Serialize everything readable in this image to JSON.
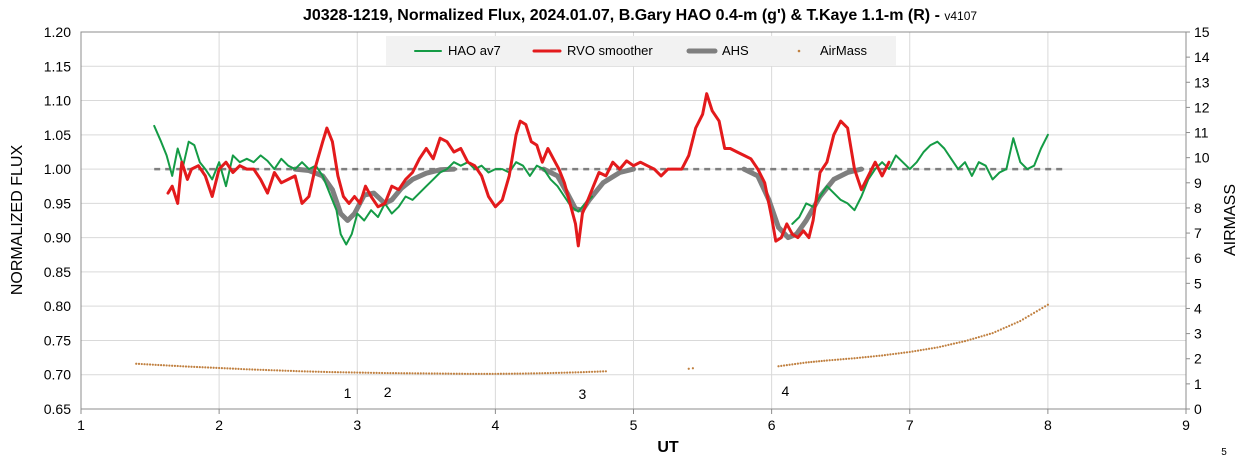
{
  "chart_data": {
    "type": "line",
    "title": "J0328-1219, Normalized Flux, 2024.01.07, B.Gary HAO 0.4-m (g') & T.Kaye 1.1-m (R) - ",
    "title_suffix": "v4107",
    "xlabel": "UT",
    "ylabel": "NORMALIZED FLUX",
    "y2label": "AIRMASS",
    "xlim": [
      1,
      9
    ],
    "ylim": [
      0.65,
      1.2
    ],
    "y2lim": [
      0,
      15
    ],
    "x_ticks": [
      "1",
      "2",
      "3",
      "4",
      "5",
      "6",
      "7",
      "8",
      "9"
    ],
    "y_ticks": [
      "0.65",
      "0.70",
      "0.75",
      "0.80",
      "0.85",
      "0.90",
      "0.95",
      "1.00",
      "1.05",
      "1.10",
      "1.15",
      "1.20"
    ],
    "y2_ticks": [
      "0",
      "1",
      "2",
      "3",
      "4",
      "5",
      "6",
      "7",
      "8",
      "9",
      "10",
      "11",
      "12",
      "13",
      "14",
      "15"
    ],
    "grid": true,
    "legend_position": "top-center",
    "corner_label": "5",
    "series": [
      {
        "name": "HAO av7",
        "color": "#149b45",
        "points": [
          [
            1.53,
            1.063
          ],
          [
            1.58,
            1.04
          ],
          [
            1.62,
            1.02
          ],
          [
            1.66,
            0.99
          ],
          [
            1.7,
            1.03
          ],
          [
            1.74,
            1.005
          ],
          [
            1.78,
            1.04
          ],
          [
            1.82,
            1.035
          ],
          [
            1.86,
            1.01
          ],
          [
            1.9,
            1.0
          ],
          [
            1.95,
            0.985
          ],
          [
            2.0,
            1.01
          ],
          [
            2.05,
            0.975
          ],
          [
            2.1,
            1.02
          ],
          [
            2.15,
            1.01
          ],
          [
            2.2,
            1.015
          ],
          [
            2.25,
            1.01
          ],
          [
            2.3,
            1.02
          ],
          [
            2.35,
            1.012
          ],
          [
            2.4,
            1.0
          ],
          [
            2.45,
            1.015
          ],
          [
            2.5,
            1.005
          ],
          [
            2.55,
            1.0
          ],
          [
            2.6,
            1.01
          ],
          [
            2.65,
            1.0
          ],
          [
            2.7,
            1.005
          ],
          [
            2.75,
            0.99
          ],
          [
            2.8,
            0.965
          ],
          [
            2.85,
            0.94
          ],
          [
            2.88,
            0.905
          ],
          [
            2.92,
            0.89
          ],
          [
            2.96,
            0.905
          ],
          [
            3.0,
            0.935
          ],
          [
            3.05,
            0.925
          ],
          [
            3.1,
            0.94
          ],
          [
            3.15,
            0.93
          ],
          [
            3.2,
            0.95
          ],
          [
            3.25,
            0.935
          ],
          [
            3.3,
            0.945
          ],
          [
            3.35,
            0.96
          ],
          [
            3.4,
            0.955
          ],
          [
            3.45,
            0.965
          ],
          [
            3.5,
            0.975
          ],
          [
            3.55,
            0.985
          ],
          [
            3.6,
            0.995
          ],
          [
            3.65,
            1.0
          ],
          [
            3.7,
            1.01
          ],
          [
            3.75,
            1.005
          ],
          [
            3.8,
            1.01
          ],
          [
            3.85,
            1.0
          ],
          [
            3.9,
            1.005
          ],
          [
            3.95,
            0.995
          ],
          [
            4.0,
            1.0
          ],
          [
            4.05,
            1.0
          ],
          [
            4.1,
            0.995
          ],
          [
            4.15,
            1.01
          ],
          [
            4.2,
            1.005
          ],
          [
            4.25,
            0.99
          ],
          [
            4.3,
            1.005
          ],
          [
            4.35,
            1.0
          ],
          [
            4.4,
            0.985
          ],
          [
            4.45,
            0.975
          ],
          [
            4.5,
            0.96
          ],
          [
            4.55,
            0.945
          ],
          [
            4.6,
            0.938
          ],
          [
            4.65,
            0.95
          ],
          [
            4.7,
            0.96
          ],
          [
            6.15,
            0.92
          ],
          [
            6.2,
            0.93
          ],
          [
            6.25,
            0.95
          ],
          [
            6.3,
            0.945
          ],
          [
            6.35,
            0.96
          ],
          [
            6.4,
            0.975
          ],
          [
            6.45,
            0.965
          ],
          [
            6.5,
            0.955
          ],
          [
            6.55,
            0.95
          ],
          [
            6.6,
            0.94
          ],
          [
            6.65,
            0.96
          ],
          [
            6.7,
            0.985
          ],
          [
            6.75,
            1.0
          ],
          [
            6.8,
            1.01
          ],
          [
            6.85,
            1.0
          ],
          [
            6.9,
            1.02
          ],
          [
            6.95,
            1.01
          ],
          [
            7.0,
            1.0
          ],
          [
            7.05,
            1.01
          ],
          [
            7.1,
            1.025
          ],
          [
            7.15,
            1.035
          ],
          [
            7.2,
            1.04
          ],
          [
            7.25,
            1.03
          ],
          [
            7.3,
            1.015
          ],
          [
            7.35,
            1.0
          ],
          [
            7.4,
            1.01
          ],
          [
            7.45,
            0.99
          ],
          [
            7.5,
            1.01
          ],
          [
            7.55,
            1.005
          ],
          [
            7.6,
            0.985
          ],
          [
            7.65,
            0.995
          ],
          [
            7.7,
            1.0
          ],
          [
            7.75,
            1.045
          ],
          [
            7.8,
            1.01
          ],
          [
            7.85,
            1.0
          ],
          [
            7.9,
            1.005
          ],
          [
            7.95,
            1.03
          ],
          [
            8.0,
            1.05
          ]
        ]
      },
      {
        "name": "RVO smoother",
        "color": "#e31a1c",
        "points": [
          [
            1.63,
            0.965
          ],
          [
            1.66,
            0.975
          ],
          [
            1.7,
            0.95
          ],
          [
            1.73,
            1.01
          ],
          [
            1.77,
            0.985
          ],
          [
            1.8,
            1.0
          ],
          [
            1.85,
            1.005
          ],
          [
            1.9,
            0.99
          ],
          [
            1.95,
            0.96
          ],
          [
            2.0,
            1.0
          ],
          [
            2.05,
            1.01
          ],
          [
            2.1,
            0.995
          ],
          [
            2.15,
            1.005
          ],
          [
            2.2,
            1.0
          ],
          [
            2.25,
            1.0
          ],
          [
            2.3,
            0.985
          ],
          [
            2.35,
            0.965
          ],
          [
            2.4,
            0.995
          ],
          [
            2.45,
            0.98
          ],
          [
            2.5,
            0.985
          ],
          [
            2.55,
            0.99
          ],
          [
            2.6,
            0.95
          ],
          [
            2.65,
            0.96
          ],
          [
            2.7,
            1.005
          ],
          [
            2.75,
            1.04
          ],
          [
            2.78,
            1.06
          ],
          [
            2.82,
            1.04
          ],
          [
            2.86,
            0.99
          ],
          [
            2.9,
            0.96
          ],
          [
            2.94,
            0.95
          ],
          [
            2.98,
            0.96
          ],
          [
            3.02,
            0.95
          ],
          [
            3.06,
            0.975
          ],
          [
            3.1,
            0.96
          ],
          [
            3.15,
            0.945
          ],
          [
            3.2,
            0.95
          ],
          [
            3.25,
            0.975
          ],
          [
            3.3,
            0.97
          ],
          [
            3.35,
            0.985
          ],
          [
            3.4,
            0.995
          ],
          [
            3.45,
            1.015
          ],
          [
            3.5,
            1.03
          ],
          [
            3.55,
            1.015
          ],
          [
            3.6,
            1.045
          ],
          [
            3.65,
            1.04
          ],
          [
            3.7,
            1.025
          ],
          [
            3.75,
            1.03
          ],
          [
            3.8,
            1.01
          ],
          [
            3.85,
            1.005
          ],
          [
            3.9,
            0.99
          ],
          [
            3.95,
            0.96
          ],
          [
            4.0,
            0.945
          ],
          [
            4.05,
            0.955
          ],
          [
            4.1,
            0.99
          ],
          [
            4.15,
            1.05
          ],
          [
            4.18,
            1.07
          ],
          [
            4.22,
            1.065
          ],
          [
            4.26,
            1.04
          ],
          [
            4.3,
            1.035
          ],
          [
            4.34,
            1.01
          ],
          [
            4.38,
            1.03
          ],
          [
            4.42,
            1.015
          ],
          [
            4.46,
            1.0
          ],
          [
            4.5,
            0.98
          ],
          [
            4.54,
            0.95
          ],
          [
            4.58,
            0.92
          ],
          [
            4.6,
            0.888
          ],
          [
            4.63,
            0.935
          ],
          [
            4.67,
            0.955
          ],
          [
            4.71,
            0.975
          ],
          [
            4.75,
            0.995
          ],
          [
            4.8,
            0.99
          ],
          [
            4.85,
            1.01
          ],
          [
            4.9,
            1.0
          ],
          [
            4.95,
            1.012
          ],
          [
            5.0,
            1.005
          ],
          [
            5.05,
            1.01
          ],
          [
            5.1,
            1.005
          ],
          [
            5.15,
            1.0
          ],
          [
            5.2,
            0.99
          ],
          [
            5.25,
            1.0
          ],
          [
            5.3,
            1.0
          ],
          [
            5.35,
            1.0
          ],
          [
            5.4,
            1.02
          ],
          [
            5.45,
            1.06
          ],
          [
            5.5,
            1.08
          ],
          [
            5.53,
            1.11
          ],
          [
            5.57,
            1.085
          ],
          [
            5.62,
            1.07
          ],
          [
            5.66,
            1.03
          ],
          [
            5.7,
            1.03
          ],
          [
            5.75,
            1.025
          ],
          [
            5.8,
            1.02
          ],
          [
            5.85,
            1.015
          ],
          [
            5.9,
            1.0
          ],
          [
            5.95,
            0.98
          ],
          [
            6.0,
            0.93
          ],
          [
            6.03,
            0.895
          ],
          [
            6.07,
            0.9
          ],
          [
            6.11,
            0.92
          ],
          [
            6.15,
            0.905
          ],
          [
            6.19,
            0.9
          ],
          [
            6.23,
            0.91
          ],
          [
            6.27,
            0.9
          ],
          [
            6.3,
            0.925
          ],
          [
            6.35,
            0.995
          ],
          [
            6.4,
            1.01
          ],
          [
            6.45,
            1.05
          ],
          [
            6.5,
            1.07
          ],
          [
            6.55,
            1.06
          ],
          [
            6.6,
            1.0
          ],
          [
            6.65,
            0.97
          ],
          [
            6.7,
            0.99
          ],
          [
            6.75,
            1.01
          ],
          [
            6.8,
            0.99
          ],
          [
            6.85,
            1.01
          ]
        ]
      },
      {
        "name": "AHS",
        "color": "#7f7f7f",
        "points": [
          [
            1.53,
            1.0
          ],
          [
            2.55,
            1.0
          ],
          [
            2.65,
            0.998
          ],
          [
            2.75,
            0.99
          ],
          [
            2.82,
            0.97
          ],
          [
            2.88,
            0.935
          ],
          [
            2.93,
            0.925
          ],
          [
            2.98,
            0.935
          ],
          [
            3.05,
            0.962
          ],
          [
            3.12,
            0.965
          ],
          [
            3.2,
            0.95
          ],
          [
            3.25,
            0.955
          ],
          [
            3.32,
            0.972
          ],
          [
            3.4,
            0.985
          ],
          [
            3.5,
            0.994
          ],
          [
            3.6,
            0.999
          ],
          [
            3.7,
            1.0
          ],
          [
            4.35,
            1.0
          ],
          [
            4.45,
            0.99
          ],
          [
            4.52,
            0.965
          ],
          [
            4.58,
            0.942
          ],
          [
            4.63,
            0.94
          ],
          [
            4.68,
            0.955
          ],
          [
            4.78,
            0.98
          ],
          [
            4.9,
            0.995
          ],
          [
            5.0,
            1.0
          ],
          [
            5.8,
            1.0
          ],
          [
            5.9,
            0.99
          ],
          [
            5.98,
            0.955
          ],
          [
            6.05,
            0.915
          ],
          [
            6.12,
            0.9
          ],
          [
            6.18,
            0.905
          ],
          [
            6.25,
            0.925
          ],
          [
            6.35,
            0.96
          ],
          [
            6.45,
            0.985
          ],
          [
            6.55,
            0.995
          ],
          [
            6.65,
            1.0
          ],
          [
            8.12,
            1.0
          ]
        ]
      },
      {
        "name": "AirMass",
        "color": "#c08040",
        "points": [
          [
            1.4,
            1.8
          ],
          [
            1.6,
            1.74
          ],
          [
            1.8,
            1.68
          ],
          [
            2.0,
            1.63
          ],
          [
            2.2,
            1.58
          ],
          [
            2.4,
            1.54
          ],
          [
            2.6,
            1.5
          ],
          [
            2.8,
            1.47
          ],
          [
            3.0,
            1.45
          ],
          [
            3.2,
            1.43
          ],
          [
            3.4,
            1.42
          ],
          [
            3.6,
            1.41
          ],
          [
            3.8,
            1.4
          ],
          [
            4.0,
            1.4
          ],
          [
            4.2,
            1.41
          ],
          [
            4.4,
            1.43
          ],
          [
            4.6,
            1.46
          ],
          [
            4.8,
            1.5
          ],
          [
            5.4,
            1.6
          ],
          [
            5.43,
            1.62
          ],
          [
            6.05,
            1.7
          ],
          [
            6.25,
            1.85
          ],
          [
            6.4,
            1.93
          ],
          [
            6.6,
            2.02
          ],
          [
            6.8,
            2.13
          ],
          [
            7.0,
            2.27
          ],
          [
            7.2,
            2.45
          ],
          [
            7.4,
            2.7
          ],
          [
            7.6,
            3.02
          ],
          [
            7.8,
            3.5
          ],
          [
            8.0,
            4.15
          ]
        ]
      }
    ],
    "reference_line": {
      "y": 1.0,
      "color": "#7f7f7f",
      "style": "dashed"
    },
    "annotations": [
      {
        "text": "1",
        "x": 2.93,
        "y": 0.673
      },
      {
        "text": "2",
        "x": 3.22,
        "y": 0.675
      },
      {
        "text": "3",
        "x": 4.63,
        "y": 0.672
      },
      {
        "text": "4",
        "x": 6.1,
        "y": 0.676
      }
    ]
  }
}
